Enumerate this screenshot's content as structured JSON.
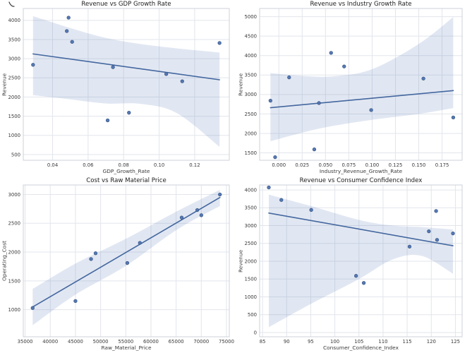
{
  "style": {
    "accent": "#4c72b0",
    "line_color": "#44679f",
    "marker_color": "#4c72b0",
    "marker_edge": "#3a5684",
    "band_color": "#4c72b0",
    "band_opacity": 0.17,
    "grid_color": "#e2e5ec",
    "frame_color": "#ccd2da",
    "text_color": "#3b3b3b",
    "background": "#ffffff"
  },
  "chart_data": [
    {
      "type": "scatter",
      "title": "Revenue vs GDP Growth Rate",
      "xlabel": "GDP_Growth_Rate",
      "ylabel": "Revenue",
      "x": [
        0.029,
        0.049,
        0.048,
        0.051,
        0.074,
        0.071,
        0.083,
        0.104,
        0.113,
        0.134
      ],
      "y": [
        2840,
        4070,
        3720,
        3440,
        2780,
        1390,
        1590,
        2600,
        2410,
        3410
      ],
      "regression_line": true,
      "ci_band": {
        "x": [
          0.029,
          0.05,
          0.07,
          0.09,
          0.11,
          0.134
        ],
        "upper": [
          4110,
          3800,
          3540,
          3380,
          3270,
          3160
        ],
        "lower": [
          2050,
          1940,
          1830,
          1820,
          1580,
          700
        ]
      },
      "xticks": [
        0.04,
        0.06,
        0.08,
        0.1,
        0.12
      ],
      "xtick_labels": [
        "0.04",
        "0.06",
        "0.08",
        "0.10",
        "0.12"
      ],
      "yticks": [
        500,
        1000,
        1500,
        2000,
        2500,
        3000,
        3500,
        4000
      ],
      "ytick_labels": [
        "500",
        "1000",
        "1500",
        "2000",
        "2500",
        "3000",
        "3500",
        "4000"
      ],
      "xlim": [
        0.0235,
        0.1395
      ],
      "ylim": [
        350,
        4310
      ],
      "grid": true
    },
    {
      "type": "scatter",
      "title": "Revenue vs Industry Growth Rate",
      "xlabel": "Industry_Revenue_Growth_Rate",
      "ylabel": "Revenue",
      "x": [
        -0.009,
        0.056,
        0.07,
        0.011,
        0.043,
        -0.004,
        0.038,
        0.099,
        0.187,
        0.155
      ],
      "y": [
        2840,
        4070,
        3720,
        3440,
        2780,
        1390,
        1590,
        2600,
        2410,
        3410
      ],
      "regression_line": true,
      "ci_band": {
        "x": [
          -0.009,
          0.03,
          0.06,
          0.1,
          0.15,
          0.187
        ],
        "upper": [
          3550,
          3470,
          3470,
          3650,
          4300,
          4990
        ],
        "lower": [
          1800,
          2050,
          2200,
          2350,
          2500,
          2650
        ]
      },
      "xticks": [
        0.0,
        0.025,
        0.05,
        0.075,
        0.1,
        0.125,
        0.15,
        0.175
      ],
      "xtick_labels": [
        "0.000",
        "0.025",
        "0.050",
        "0.075",
        "0.100",
        "0.125",
        "0.150",
        "0.175"
      ],
      "yticks": [
        1500,
        2000,
        2500,
        3000,
        3500,
        4000,
        4500,
        5000
      ],
      "ytick_labels": [
        "1500",
        "2000",
        "2500",
        "3000",
        "3500",
        "4000",
        "4500",
        "5000"
      ],
      "xlim": [
        -0.0206,
        0.1965
      ],
      "ylim": [
        1310,
        5210
      ],
      "grid": true
    },
    {
      "type": "scatter",
      "title": "Cost vs Raw Material Price",
      "xlabel": "Raw_Material_Price",
      "ylabel": "Operating_Cost",
      "x": [
        36500,
        45000,
        48100,
        49000,
        55300,
        57800,
        66100,
        69200,
        70000,
        73700
      ],
      "y": [
        1030,
        1150,
        1880,
        1980,
        1810,
        2160,
        2600,
        2730,
        2640,
        3000
      ],
      "regression_line": true,
      "ci_band": {
        "x": [
          36500,
          45000,
          55000,
          65000,
          73700
        ],
        "upper": [
          1360,
          1800,
          2230,
          2700,
          3080
        ],
        "lower": [
          730,
          1260,
          1760,
          2380,
          2800
        ]
      },
      "xticks": [
        35000,
        40000,
        45000,
        50000,
        55000,
        60000,
        65000,
        70000,
        75000
      ],
      "xtick_labels": [
        "35000",
        "40000",
        "45000",
        "50000",
        "55000",
        "60000",
        "65000",
        "70000",
        "75000"
      ],
      "yticks": [
        1000,
        1500,
        2000,
        2500,
        3000
      ],
      "ytick_labels": [
        "1000",
        "1500",
        "2000",
        "2500",
        "3000"
      ],
      "xlim": [
        34640,
        75560
      ],
      "ylim": [
        530,
        3165
      ],
      "grid": true
    },
    {
      "type": "scatter",
      "title": "Revenue vs Consumer Confidence Index",
      "xlabel": "Consumer_Confidence_Index",
      "ylabel": "Revenue",
      "x": [
        119.5,
        86.3,
        88.9,
        95.1,
        124.5,
        106.0,
        104.4,
        121.2,
        115.5,
        121.0
      ],
      "y": [
        2840,
        4070,
        3720,
        3440,
        2780,
        1390,
        1590,
        2600,
        2410,
        3410
      ],
      "regression_line": true,
      "ci_band": {
        "x": [
          86.3,
          95,
          105,
          112,
          118,
          124.5
        ],
        "upper": [
          3870,
          3550,
          3160,
          3000,
          2960,
          2890
        ],
        "lower": [
          150,
          800,
          1500,
          2050,
          2150,
          1650
        ]
      },
      "xticks": [
        85,
        90,
        95,
        100,
        105,
        110,
        115,
        120,
        125
      ],
      "xtick_labels": [
        "85",
        "90",
        "95",
        "100",
        "105",
        "110",
        "115",
        "120",
        "125"
      ],
      "yticks": [
        0,
        500,
        1000,
        1500,
        2000,
        2500,
        3000,
        3500,
        4000
      ],
      "ytick_labels": [
        "0",
        "500",
        "1000",
        "1500",
        "2000",
        "2500",
        "3000",
        "3500",
        "4000"
      ],
      "xlim": [
        84.4,
        126.4
      ],
      "ylim": [
        -120,
        4140
      ],
      "grid": true
    }
  ]
}
